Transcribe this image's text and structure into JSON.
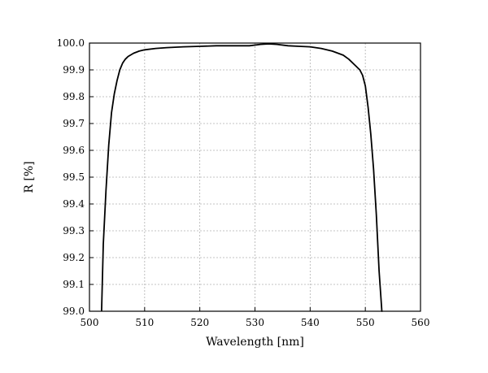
{
  "chart_data": {
    "type": "line",
    "title": "",
    "xlabel": "Wavelength [nm]",
    "ylabel": "R [%]",
    "xlim": [
      500,
      560
    ],
    "ylim": [
      99.0,
      100.0
    ],
    "grid": true,
    "xticks": [
      "500",
      "510",
      "520",
      "530",
      "540",
      "550",
      "560"
    ],
    "yticks": [
      "99.0",
      "99.1",
      "99.2",
      "99.3",
      "99.4",
      "99.5",
      "99.6",
      "99.7",
      "99.8",
      "99.9",
      "100.0"
    ],
    "series": [
      {
        "color": "#000000",
        "x": [
          502.2,
          502.5,
          503.0,
          503.5,
          504.0,
          504.5,
          505.0,
          505.5,
          506.0,
          506.5,
          507.0,
          508.0,
          509.0,
          510.0,
          512.0,
          514.0,
          517.0,
          520.0,
          523.0,
          526.0,
          529.0,
          531.0,
          532.5,
          534.0,
          536.0,
          538.0,
          540.0,
          542.0,
          544.0,
          546.0,
          547.0,
          548.0,
          549.0,
          549.5,
          550.0,
          550.5,
          551.0,
          551.5,
          552.0,
          552.5,
          553.0,
          553.1
        ],
        "y": [
          99.0,
          99.25,
          99.45,
          99.62,
          99.74,
          99.81,
          99.86,
          99.9,
          99.925,
          99.94,
          99.95,
          99.962,
          99.97,
          99.975,
          99.98,
          99.983,
          99.986,
          99.988,
          99.99,
          99.99,
          99.99,
          99.995,
          99.997,
          99.995,
          99.99,
          99.988,
          99.986,
          99.98,
          99.97,
          99.955,
          99.94,
          99.92,
          99.9,
          99.88,
          99.84,
          99.76,
          99.66,
          99.53,
          99.36,
          99.15,
          99.0,
          99.0
        ]
      }
    ]
  }
}
